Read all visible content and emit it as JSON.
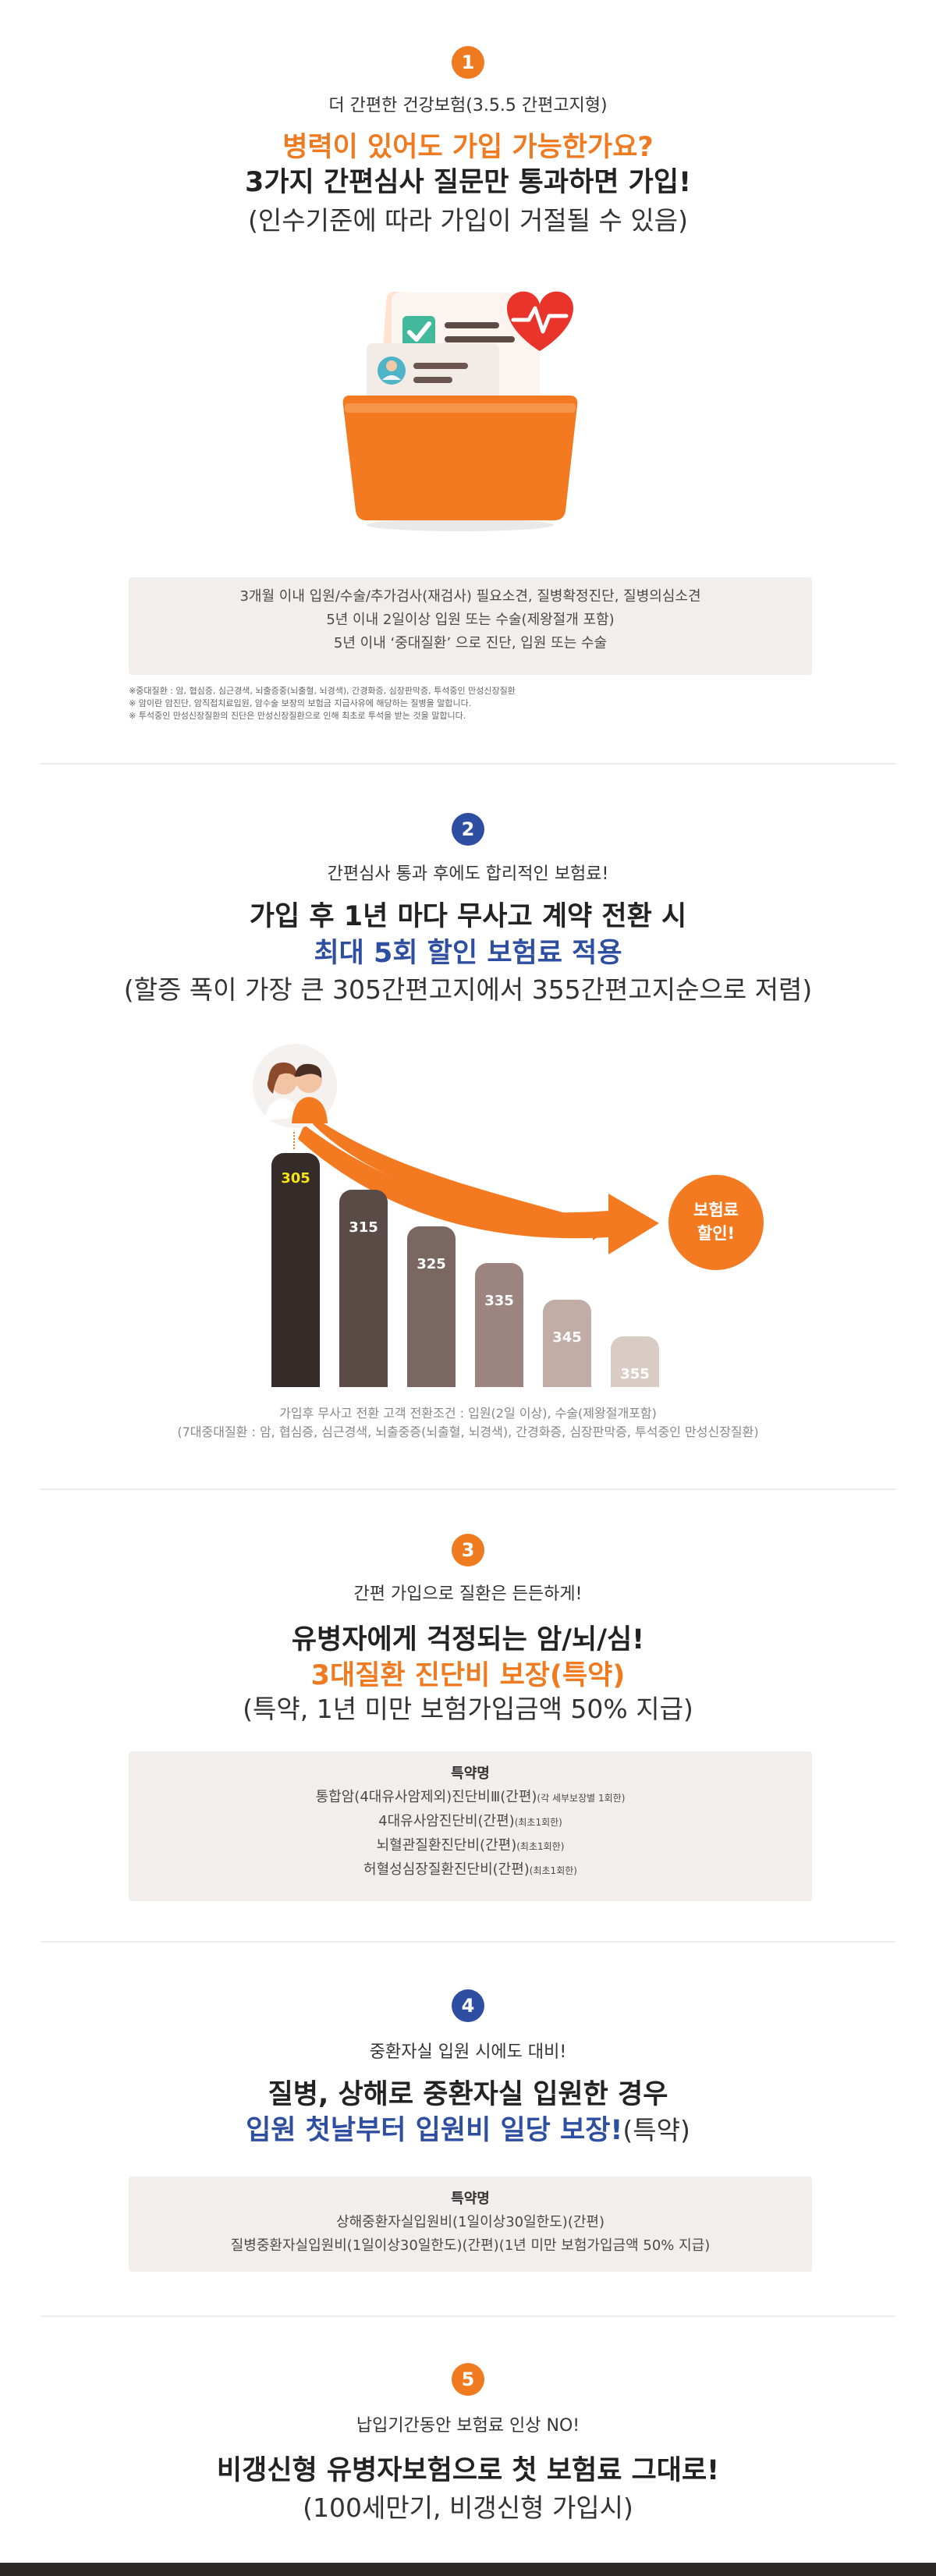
{
  "section1": {
    "number": "1",
    "subtitle": "더 간편한 건강보험(3.5.5 간편고지형)",
    "headline_orange": "병력이 있어도 가입 가능한가요?",
    "headline": "3가지 간편심사 질문만 통과하면 가입!",
    "paren": "(인수기준에 따라 가입이 거절될 수 있음)",
    "box_lines": [
      "3개월 이내  입원/수술/추가검사(재검사) 필요소견, 질병확정진단, 질병의심소견",
      "5년 이내 2일이상 입원 또는 수술(제왕절개 포함)",
      "5년 이내 ‘중대질환’ 으로 진단,  입원 또는 수술"
    ],
    "notes": [
      "※중대질환 : 암, 협심증, 심근경색, 뇌출증중(뇌출혈, 뇌경색), 간경화증, 심장판막증, 투석중인 만성신장질환",
      "※ 암이란 암진단, 암직접치료입원, 암수술 보장의 보험금 지급사유에 해당하는 질병을 말합니다.",
      "※ 투석중인 만성신장질환의 진단은 만성신장질환으로 인해 최초로 투석을 받는 것을 말합니다."
    ]
  },
  "section2": {
    "number": "2",
    "subtitle": "간편심사 통과 후에도 합리적인 보험료!",
    "headline": "가입 후 1년 마다 무사고 계약 전환 시",
    "headline_blue": "최대 5회 할인 보험료 적용",
    "paren": "(할증 폭이 가장 큰 305간편고지에서 355간편고지순으로 저렴)",
    "badge": [
      "보험료",
      "할인!"
    ],
    "captions": [
      "가입후 무사고 전환 고객 전환조건 : 입원(2일 이상), 수술(제왕절개포함)",
      "(7대중대질환 : 암, 협심증, 심근경색, 뇌출중증(뇌출혈, 뇌경색), 간경화증, 심장판막증, 투석중인 만성신장질환)"
    ]
  },
  "chart_data": {
    "type": "bar",
    "categories": [
      "305",
      "315",
      "325",
      "335",
      "345",
      "355"
    ],
    "values": [
      305,
      315,
      325,
      335,
      345,
      355
    ],
    "colors": [
      "#352b29",
      "#5b4b47",
      "#7a6761",
      "#9c8580",
      "#c1aca6",
      "#d8ccc4"
    ],
    "label_colors": [
      "#f5e516",
      "#ffffff",
      "#ffffff",
      "#ffffff",
      "#ffffff",
      "#ffffff"
    ]
  },
  "section3": {
    "number": "3",
    "subtitle": "간편 가입으로 질환은 든든하게!",
    "headline": "유병자에게 걱정되는 암/뇌/심!",
    "headline_orange": "3대질환 진단비 보장(특약)",
    "paren": "(특약, 1년 미만 보험가입금액 50% 지급)",
    "box_head": "특약명",
    "box_lines": [
      {
        "main": "통합암(4대유사암제외)진단비Ⅲ(간편)",
        "small": "(각 세부보장별 1회한)"
      },
      {
        "main": "4대유사암진단비(간편)",
        "small": "(최초1회한)"
      },
      {
        "main": "뇌혈관질환진단비(간편)",
        "small": "(최초1회한)"
      },
      {
        "main": "허혈성심장질환진단비(간편)",
        "small": "(최초1회한)"
      }
    ]
  },
  "section4": {
    "number": "4",
    "subtitle": "중환자실 입원 시에도 대비!",
    "headline": "질병, 상해로 중환자실 입원한 경우",
    "headline_blue": "입원 첫날부터 입원비 일당 보장!",
    "headline_tail": "(특약)",
    "box_head": "특약명",
    "box_lines": [
      "상해중환자실입원비(1일이상30일한도)(간편)",
      "질병중환자실입원비(1일이상30일한도)(간편)(1년 미만 보험가입금액 50% 지급)"
    ]
  },
  "section5": {
    "number": "5",
    "subtitle": "납입기간동안 보험료 인상 NO!",
    "headline": "비갱신형 유병자보험으로 첫 보험료 그대로!",
    "paren": "(100세만기, 비갱신형 가입시)"
  }
}
